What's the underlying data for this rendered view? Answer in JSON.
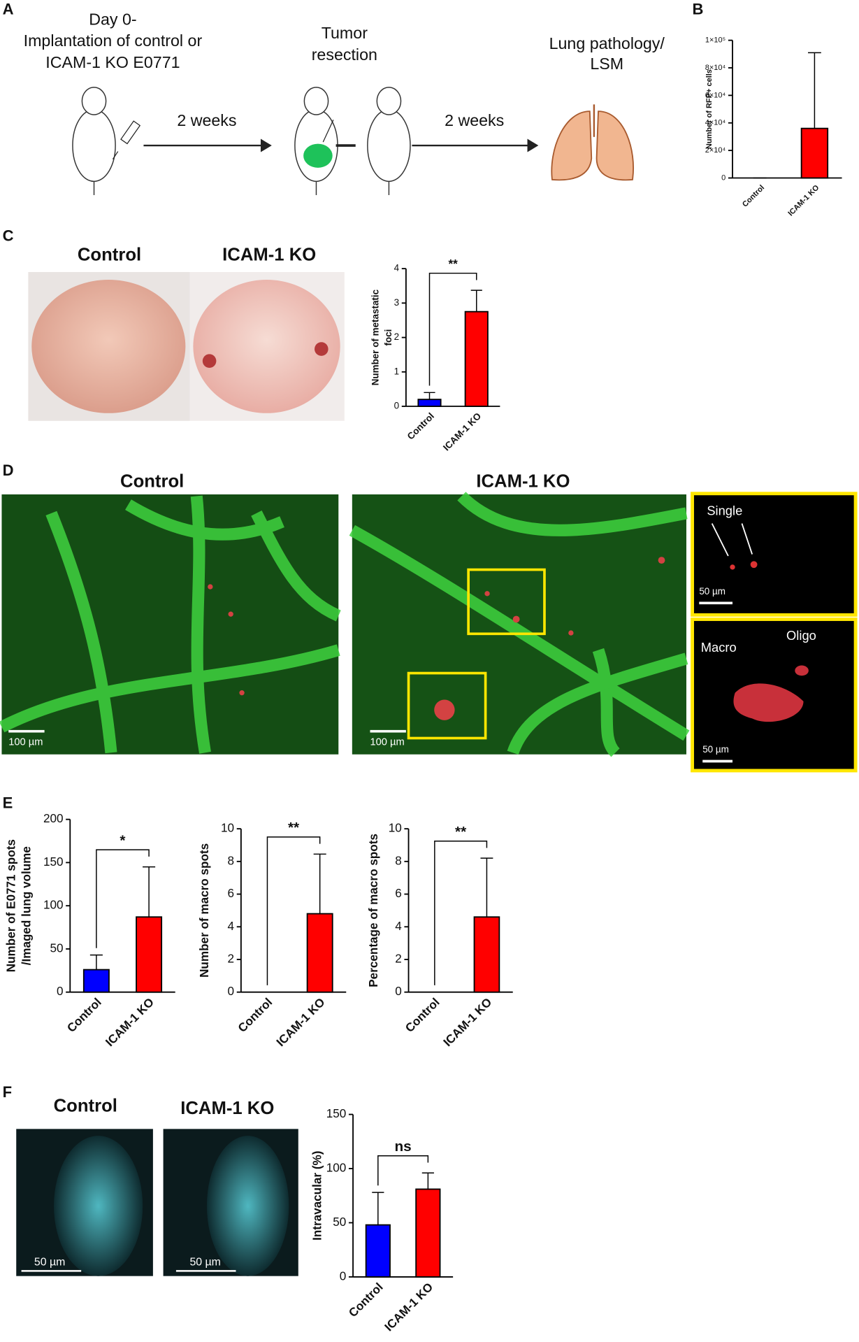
{
  "panel_labels": {
    "a": "A",
    "b": "B",
    "c": "C",
    "d": "D",
    "e": "E",
    "f": "F"
  },
  "schematic": {
    "implantation": [
      "Day 0-",
      "Implantation of control or",
      "ICAM-1 KO E0771"
    ],
    "interval_1": "2 weeks",
    "resection": [
      "Tumor",
      "resection"
    ],
    "interval_2": "2 weeks",
    "outcome": [
      "Lung pathology/",
      "LSM"
    ]
  },
  "lung_photos": {
    "control": "Control",
    "ko": "ICAM-1 KO"
  },
  "lsm_images": {
    "control": "Control",
    "ko": "ICAM-1 KO",
    "scale_control": "100 µm",
    "scale_ko": "100 µm",
    "inset_top": {
      "label": "Single",
      "scale": "50 µm"
    },
    "inset_bottom": {
      "macro": "Macro",
      "oligo": "Oligo",
      "scale": "50 µm"
    }
  },
  "vessel_images": {
    "control": "Control",
    "ko": "ICAM-1 KO",
    "scale_control": "50 µm",
    "scale_ko": "50 µm"
  },
  "chart_data": [
    {
      "type": "bar",
      "y_label": [
        "Number of RFP+ cells"
      ],
      "categories": [
        "Control",
        "ICAM-1 KO"
      ],
      "values": [
        0,
        36000
      ],
      "errors": [
        0,
        55000
      ],
      "colors": [
        "#0000ff",
        "#ff0000"
      ],
      "ylim": [
        0,
        100000
      ],
      "yticks": [
        0,
        {
          "value": 20000,
          "label": "2×10⁴"
        },
        {
          "value": 40000,
          "label": "4×10⁴"
        },
        {
          "value": 60000,
          "label": "6×10⁴"
        },
        {
          "value": 80000,
          "label": "8×10⁴"
        },
        {
          "value": 100000,
          "label": "1×10⁵"
        }
      ]
    },
    {
      "type": "bar",
      "y_label": [
        "Number of metastatic",
        "foci"
      ],
      "categories": [
        "Control",
        "ICAM-1 KO"
      ],
      "values": [
        0.2,
        2.75
      ],
      "errors": [
        0.2,
        0.62
      ],
      "colors": [
        "#0000ff",
        "#ff0000"
      ],
      "ylim": [
        0,
        4
      ],
      "yticks": [
        0,
        1,
        2,
        3,
        4
      ],
      "significance": "**"
    },
    {
      "type": "bar",
      "y_label": [
        "Number of E0771 spots",
        "/Imaged lung volume"
      ],
      "categories": [
        "Control",
        "ICAM-1 KO"
      ],
      "values": [
        26,
        87
      ],
      "errors": [
        17,
        58
      ],
      "colors": [
        "#0000ff",
        "#ff0000"
      ],
      "ylim": [
        0,
        200
      ],
      "yticks": [
        0,
        50,
        100,
        150,
        200
      ],
      "significance": "*"
    },
    {
      "type": "bar",
      "y_label": [
        "Number of macro spots"
      ],
      "categories": [
        "Control",
        "ICAM-1 KO"
      ],
      "values": [
        0,
        4.8
      ],
      "errors": [
        0,
        3.65
      ],
      "colors": [
        "#0000ff",
        "#ff0000"
      ],
      "ylim": [
        0,
        10
      ],
      "yticks": [
        0,
        2,
        4,
        6,
        8,
        10
      ],
      "significance": "**"
    },
    {
      "type": "bar",
      "y_label": [
        "Percentage of macro spots"
      ],
      "categories": [
        "Control",
        "ICAM-1 KO"
      ],
      "values": [
        0,
        4.6
      ],
      "errors": [
        0,
        3.6
      ],
      "colors": [
        "#0000ff",
        "#ff0000"
      ],
      "ylim": [
        0,
        10
      ],
      "yticks": [
        0,
        2,
        4,
        6,
        8,
        10
      ],
      "significance": "**"
    },
    {
      "type": "bar",
      "y_label": [
        "Intravacular (%)"
      ],
      "categories": [
        "Control",
        "ICAM-1 KO"
      ],
      "values": [
        48,
        81
      ],
      "errors": [
        30,
        15
      ],
      "colors": [
        "#0000ff",
        "#ff0000"
      ],
      "ylim": [
        0,
        150
      ],
      "yticks": [
        0,
        50,
        100,
        150
      ],
      "significance": "ns"
    }
  ]
}
